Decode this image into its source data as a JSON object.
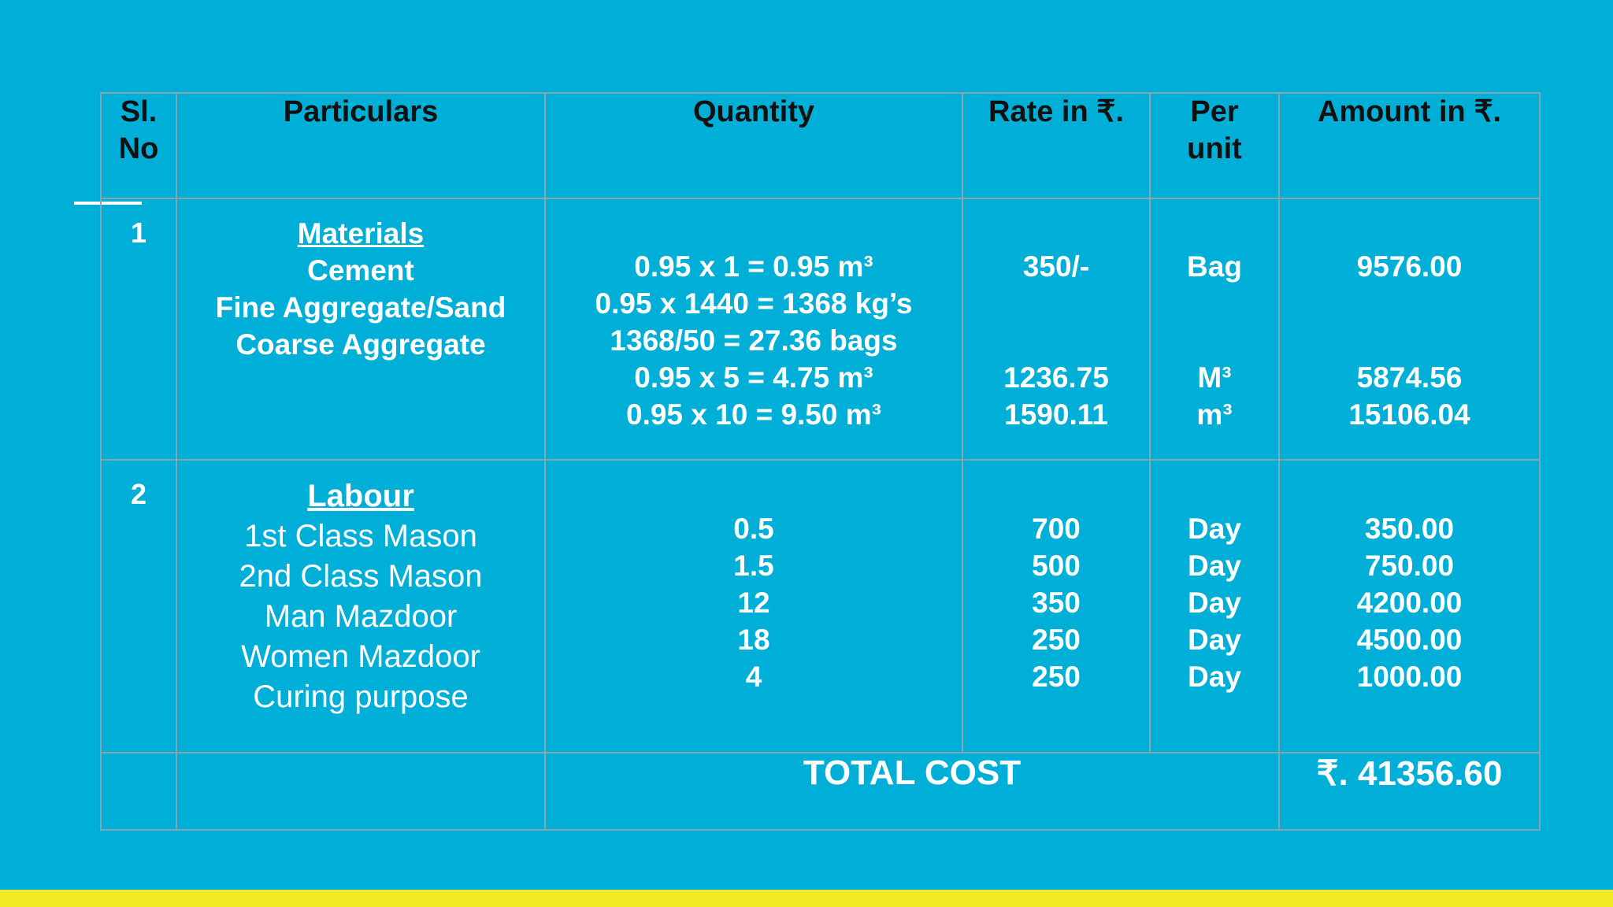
{
  "colors": {
    "background": "#00afd7",
    "bottom_bar": "#f2e826",
    "header_text": "#111111",
    "body_text": "#ffffff",
    "grid": "#8aa5ad"
  },
  "headers": {
    "sl_no": "Sl. No",
    "particulars": "Particulars",
    "quantity": "Quantity",
    "rate": "Rate in ₹.",
    "per_unit": "Per unit",
    "amount": "Amount in ₹."
  },
  "materials": {
    "sl": "1",
    "title": "Materials",
    "items": [
      "Cement",
      "Fine Aggregate/Sand",
      "Coarse Aggregate"
    ],
    "quantity": [
      "0.95 x 1 = 0.95 m³",
      "0.95 x 1440 = 1368 kg’s",
      "1368/50 = 27.36 bags",
      "0.95 x 5 = 4.75 m³",
      "0.95 x 10 = 9.50 m³"
    ],
    "rate": [
      "350/-",
      "",
      "",
      "1236.75",
      "1590.11"
    ],
    "per_unit": [
      "Bag",
      "",
      "",
      "M³",
      "m³"
    ],
    "amount": [
      "9576.00",
      "",
      "",
      "5874.56",
      "15106.04"
    ]
  },
  "labour": {
    "sl": "2",
    "title": "Labour",
    "items": [
      "1st Class Mason",
      "2nd Class Mason",
      "Man Mazdoor",
      "Women Mazdoor",
      "Curing purpose"
    ],
    "quantity": [
      "0.5",
      "1.5",
      "12",
      "18",
      "4"
    ],
    "rate": [
      "700",
      "500",
      "350",
      "250",
      "250"
    ],
    "per_unit": [
      "Day",
      "Day",
      "Day",
      "Day",
      "Day"
    ],
    "amount": [
      "350.00",
      "750.00",
      "4200.00",
      "4500.00",
      "1000.00"
    ]
  },
  "total": {
    "label": "TOTAL COST",
    "value": "₹. 41356.60"
  }
}
